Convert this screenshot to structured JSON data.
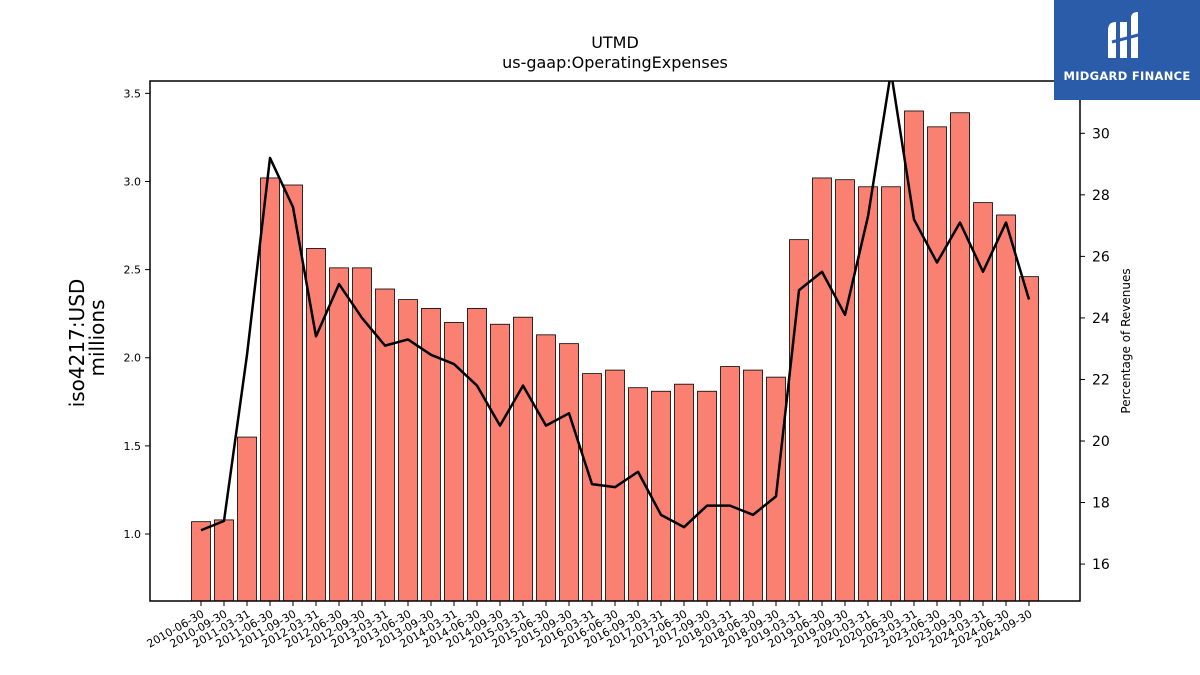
{
  "chart_data": {
    "type": "bar",
    "title": "UTMD",
    "subtitle": "us-gaap:OperatingExpenses",
    "ylabel_line1": "iso4217:USD",
    "ylabel_line2": "millions",
    "y2label": "Percentage of Revenues",
    "ylim": [
      0.62,
      3.57
    ],
    "y2lim": [
      14.8,
      31.7
    ],
    "yticks": [
      1.0,
      1.5,
      2.0,
      2.5,
      3.0,
      3.5
    ],
    "y2ticks": [
      16,
      18,
      20,
      22,
      24,
      26,
      28,
      30
    ],
    "bar_color": "#fa8072",
    "line_color": "#000000",
    "categories": [
      "2010-06-30",
      "2010-09-30",
      "2011-03-31",
      "2011-06-30",
      "2011-09-30",
      "2012-03-31",
      "2012-06-30",
      "2012-09-30",
      "2013-03-31",
      "2013-06-30",
      "2013-09-30",
      "2014-03-31",
      "2014-06-30",
      "2014-09-30",
      "2015-03-31",
      "2015-06-30",
      "2015-09-30",
      "2016-03-31",
      "2016-06-30",
      "2016-09-30",
      "2017-03-31",
      "2017-06-30",
      "2017-09-30",
      "2018-03-31",
      "2018-06-30",
      "2018-09-30",
      "2019-03-31",
      "2019-06-30",
      "2019-09-30",
      "2020-03-31",
      "2020-06-30",
      "2023-03-31",
      "2023-06-30",
      "2023-09-30",
      "2024-03-31",
      "2024-06-30",
      "2024-09-30"
    ],
    "series": [
      {
        "values": [
          1.07,
          1.08,
          1.55,
          3.02,
          2.98,
          2.62,
          2.51,
          2.51,
          2.39,
          2.33,
          2.28,
          2.2,
          2.28,
          2.19,
          2.23,
          2.13,
          2.08,
          1.91,
          1.93,
          1.83,
          1.81,
          1.85,
          1.81,
          1.95,
          1.93,
          1.89,
          2.67,
          3.02,
          3.01,
          2.97,
          2.97,
          3.4,
          3.31,
          3.39,
          2.88,
          2.81,
          2.46
        ]
      },
      {
        "values": [
          17.1,
          17.4,
          22.8,
          29.2,
          27.6,
          23.4,
          25.1,
          24.0,
          23.1,
          23.3,
          22.8,
          22.5,
          21.8,
          20.5,
          21.8,
          20.5,
          20.9,
          18.6,
          18.5,
          19.0,
          17.6,
          17.2,
          17.9,
          17.9,
          17.6,
          18.2,
          24.9,
          25.5,
          24.1,
          27.3,
          32.0,
          27.2,
          25.8,
          27.1,
          25.5,
          27.1,
          24.6
        ]
      }
    ]
  },
  "logo": {
    "text": "MIDGARD FINANCE"
  }
}
